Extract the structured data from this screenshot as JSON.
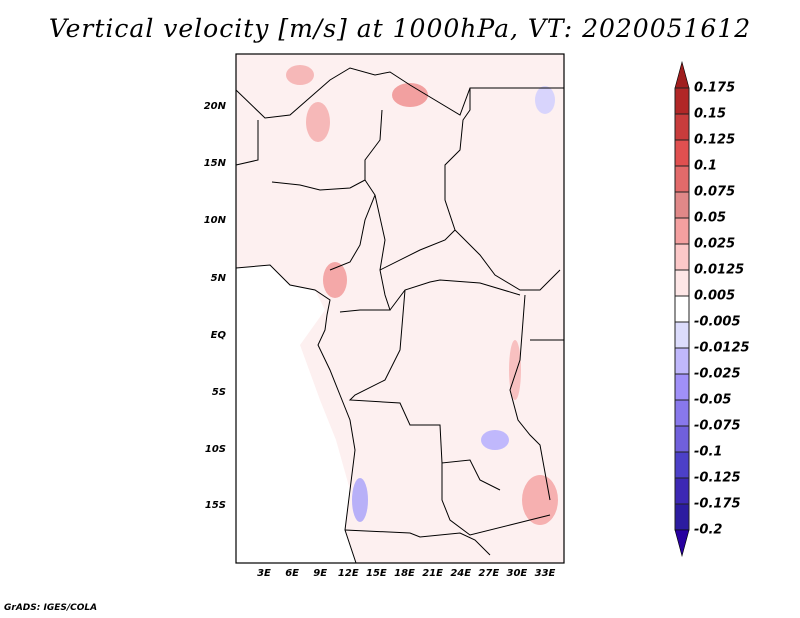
{
  "title": "Vertical velocity [m/s] at 1000hPa, VT: 2020051612",
  "lat_labels": [
    "20N",
    "15N",
    "10N",
    "5N",
    "EQ",
    "5S",
    "10S",
    "15S"
  ],
  "lon_labels": [
    "3E",
    "6E",
    "9E",
    "12E",
    "15E",
    "18E",
    "21E",
    "24E",
    "27E",
    "30E",
    "33E"
  ],
  "colorbar": {
    "labels": [
      "0.175",
      "0.15",
      "0.125",
      "0.1",
      "0.075",
      "0.05",
      "0.025",
      "0.0125",
      "0.005",
      "-0.005",
      "-0.0125",
      "-0.025",
      "-0.05",
      "-0.075",
      "-0.1",
      "-0.125",
      "-0.175",
      "-0.2"
    ],
    "colors": [
      "#b12727",
      "#c83c3c",
      "#e05050",
      "#e26a6a",
      "#e08888",
      "#f4a0a0",
      "#fcc8c8",
      "#fde6e6",
      "#ffffff",
      "#dcdcfc",
      "#c0b8fc",
      "#a090f8",
      "#8878ec",
      "#7060dc",
      "#4c40c8",
      "#3c28b4",
      "#2c1ca0"
    ],
    "top_arrow_color": "#a01e1e",
    "bottom_arrow_color": "#2800a0"
  },
  "credit": "GrADS: IGES/COLA"
}
